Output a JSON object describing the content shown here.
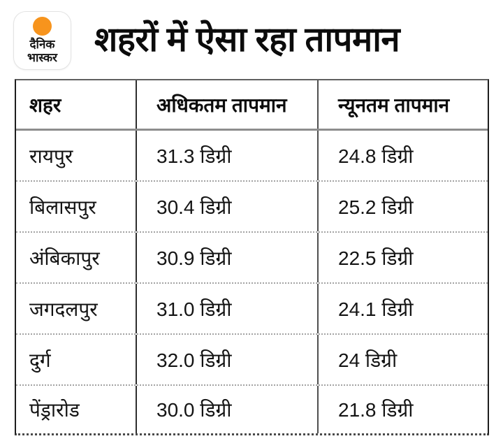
{
  "brand": {
    "name": "dainik-bhaskar",
    "logo_line1": "दैनिक",
    "logo_line2": "भास्कर",
    "accent_color": "#F7941D"
  },
  "title": "शहरों में ऐसा रहा तापमान",
  "table": {
    "headers": [
      "शहर",
      "अधिकतम तापमान",
      "न्यूनतम तापमान"
    ],
    "rows": [
      [
        "रायपुर",
        "31.3 डिग्री",
        "24.8 डिग्री"
      ],
      [
        "बिलासपुर",
        "30.4 डिग्री",
        "25.2 डिग्री"
      ],
      [
        "अंबिकापुर",
        "30.9 डिग्री",
        "22.5 डिग्री"
      ],
      [
        "जगदलपुर",
        "31.0 डिग्री",
        "24.1 डिग्री"
      ],
      [
        "दुर्ग",
        "32.0 डिग्री",
        "24 डिग्री"
      ],
      [
        "पेंड्रारोड",
        "30.0 डिग्री",
        "21.8 डिग्री"
      ]
    ]
  },
  "chart_data": {
    "type": "table",
    "title": "शहरों में ऐसा रहा तापमान",
    "columns": [
      "शहर",
      "अधिकतम तापमान",
      "न्यूनतम तापमान"
    ],
    "unit": "डिग्री",
    "rows": [
      {
        "city": "रायपुर",
        "max_temp_c": 31.3,
        "min_temp_c": 24.8
      },
      {
        "city": "बिलासपुर",
        "max_temp_c": 30.4,
        "min_temp_c": 25.2
      },
      {
        "city": "अंबिकापुर",
        "max_temp_c": 30.9,
        "min_temp_c": 22.5
      },
      {
        "city": "जगदलपुर",
        "max_temp_c": 31.0,
        "min_temp_c": 24.1
      },
      {
        "city": "दुर्ग",
        "max_temp_c": 32.0,
        "min_temp_c": 24
      },
      {
        "city": "पेंड्रारोड",
        "max_temp_c": 30.0,
        "min_temp_c": 21.8
      }
    ]
  }
}
